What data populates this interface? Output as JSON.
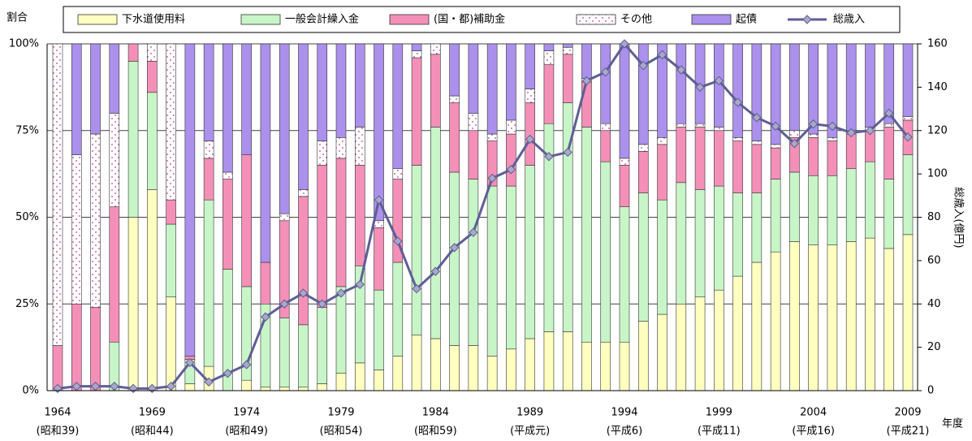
{
  "chart_data": {
    "type": "bar",
    "stacked": true,
    "categories": [
      "1964",
      null,
      null,
      null,
      null,
      "1969",
      null,
      null,
      null,
      null,
      "1974",
      null,
      null,
      null,
      null,
      "1979",
      null,
      null,
      null,
      null,
      "1984",
      null,
      null,
      null,
      null,
      "1989",
      null,
      null,
      null,
      null,
      "1994",
      null,
      null,
      null,
      null,
      "1999",
      null,
      null,
      null,
      null,
      "2004",
      null,
      null,
      null,
      null,
      "2009"
    ],
    "category_sublabels": [
      "(昭和39)",
      null,
      null,
      null,
      null,
      "(昭和44)",
      null,
      null,
      null,
      null,
      "(昭和49)",
      null,
      null,
      null,
      null,
      "(昭和54)",
      null,
      null,
      null,
      null,
      "(昭和59)",
      null,
      null,
      null,
      null,
      "(平成元)",
      null,
      null,
      null,
      null,
      "(平成6)",
      null,
      null,
      null,
      null,
      "(平成11)",
      null,
      null,
      null,
      null,
      "(平成16)",
      null,
      null,
      null,
      null,
      "(平成21)"
    ],
    "xlabel": "年度",
    "ylabel": "割合",
    "y2label": "総歳入(億円)",
    "ylim": [
      0,
      100
    ],
    "yticks": [
      {
        "value": 0,
        "label": "0%"
      },
      {
        "value": 25,
        "label": "25%"
      },
      {
        "value": 50,
        "label": "50%"
      },
      {
        "value": 75,
        "label": "75%"
      },
      {
        "value": 100,
        "label": "100%"
      }
    ],
    "y2lim": [
      0,
      160
    ],
    "y2ticks": [
      0,
      20,
      40,
      60,
      80,
      100,
      120,
      140,
      160
    ],
    "grid": true,
    "legend": "top",
    "series": [
      {
        "name": "下水道使用料",
        "color": "#ffffc0",
        "values": [
          0,
          0,
          0,
          0,
          50,
          58,
          27,
          2,
          7,
          0,
          3,
          1,
          1,
          1,
          2,
          5,
          8,
          6,
          10,
          16,
          15,
          13,
          13,
          10,
          12,
          15,
          17,
          17,
          14,
          14,
          14,
          20,
          22,
          25,
          27,
          29,
          33,
          37,
          40,
          43,
          42,
          42,
          43,
          44,
          41,
          45
        ]
      },
      {
        "name": "一般会計繰入金",
        "color": "#c8f5c8",
        "values": [
          0,
          0,
          0,
          14,
          45,
          28,
          21,
          7,
          48,
          35,
          27,
          24,
          20,
          18,
          22,
          25,
          28,
          23,
          27,
          49,
          61,
          50,
          48,
          49,
          47,
          50,
          60,
          66,
          62,
          52,
          39,
          37,
          33,
          35,
          31,
          30,
          24,
          20,
          21,
          20,
          20,
          20,
          21,
          22,
          20,
          23
        ]
      },
      {
        "name": "(国・都)補助金",
        "color": "#f490b8",
        "values": [
          13,
          25,
          24,
          39,
          5,
          9,
          7,
          1,
          12,
          26,
          38,
          12,
          28,
          37,
          41,
          37,
          29,
          18,
          24,
          31,
          21,
          20,
          14,
          13,
          15,
          18,
          17,
          14,
          13,
          9,
          12,
          12,
          16,
          16,
          18,
          16,
          15,
          14,
          9,
          10,
          11,
          10,
          10,
          9,
          15,
          10
        ]
      },
      {
        "name": "その他",
        "color": "#ffffff",
        "pattern": "dots",
        "values": [
          87,
          43,
          50,
          27,
          0,
          5,
          45,
          0,
          5,
          2,
          0,
          0,
          2,
          2,
          7,
          6,
          11,
          2,
          3,
          2,
          3,
          2,
          5,
          2,
          4,
          4,
          4,
          2,
          1,
          2,
          2,
          2,
          2,
          1,
          1,
          1,
          1,
          1,
          1,
          2,
          1,
          1,
          1,
          1,
          1,
          1
        ]
      },
      {
        "name": "起債",
        "color": "#ab90ec",
        "values": [
          0,
          32,
          26,
          20,
          0,
          0,
          0,
          90,
          28,
          37,
          32,
          63,
          49,
          42,
          28,
          27,
          24,
          51,
          36,
          2,
          0,
          15,
          20,
          26,
          22,
          13,
          2,
          1,
          10,
          23,
          33,
          29,
          27,
          23,
          23,
          24,
          27,
          28,
          29,
          25,
          26,
          27,
          25,
          24,
          23,
          21
        ]
      },
      {
        "name": "総歳入",
        "type": "line",
        "axis": "y2",
        "color": "#5e5e96",
        "marker_color": "#a8a8c8",
        "values": [
          1,
          2,
          2,
          2,
          1,
          1,
          2,
          13,
          4,
          8,
          12,
          34,
          40,
          45,
          40,
          45,
          49,
          88,
          69,
          47,
          55,
          66,
          73,
          98,
          102,
          116,
          108,
          110,
          143,
          147,
          160,
          150,
          155,
          148,
          140,
          143,
          133,
          126,
          122,
          114,
          123,
          122,
          119,
          120,
          128,
          117
        ]
      }
    ]
  }
}
